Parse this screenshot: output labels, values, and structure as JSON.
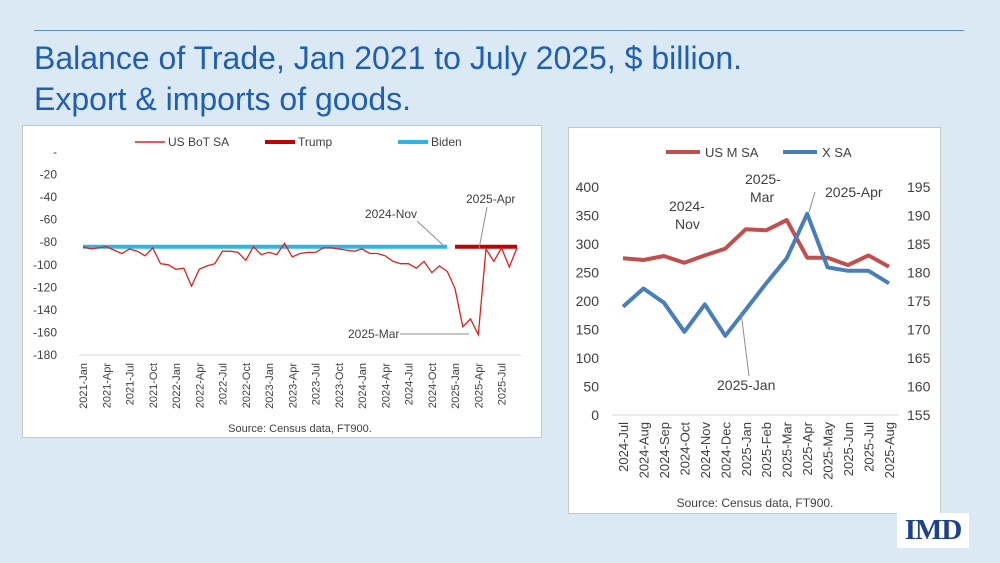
{
  "title_line1": "Balance of Trade, Jan 2021 to July 2025, $ billion.",
  "title_line2": "Export & imports of goods.",
  "logo": "IMD",
  "colors": {
    "bot": "#e0201c",
    "trump": "#c00000",
    "biden": "#2bb5e8",
    "imports": "#c0504d",
    "exports": "#4a7ebb"
  },
  "chart_data": [
    {
      "type": "line",
      "title": "",
      "source": "Source: Census data, FT900.",
      "legend": [
        "US BoT SA",
        "Trump",
        "Biden"
      ],
      "yticks": [
        "-",
        "-20",
        "-40",
        "-60",
        "-80",
        "-100",
        "-120",
        "-140",
        "-160",
        "-180"
      ],
      "ylim": [
        -180,
        0
      ],
      "xtick_labels": [
        "2021-Jan",
        "2021-Apr",
        "2021-Jul",
        "2021-Oct",
        "2022-Jan",
        "2022-Apr",
        "2022-Jul",
        "2022-Oct",
        "2023-Jan",
        "2023-Apr",
        "2023-Jul",
        "2023-Oct",
        "2024-Jan",
        "2024-Apr",
        "2024-Jul",
        "2024-Oct",
        "2025-Jan",
        "2025-Apr",
        "2025-Jul"
      ],
      "series": [
        {
          "name": "US BoT SA",
          "values": [
            -84,
            -86,
            -85,
            -84,
            -87,
            -90,
            -86,
            -88,
            -92,
            -85,
            -99,
            -100,
            -104,
            -103,
            -119,
            -104,
            -101,
            -99,
            -88,
            -88,
            -89,
            -96,
            -84,
            -91,
            -89,
            -91,
            -81,
            -93,
            -90,
            -89,
            -89,
            -85,
            -85,
            -86,
            -87,
            -88,
            -86,
            -90,
            -90,
            -92,
            -97,
            -99,
            -99,
            -103,
            -97,
            -107,
            -101,
            -106,
            -121,
            -155,
            -148,
            -162,
            -86,
            -97,
            -85,
            -102,
            -85
          ]
        },
        {
          "name": "Trump",
          "x_range": [
            48,
            56
          ],
          "value": -84
        },
        {
          "name": "Biden",
          "x_range": [
            0,
            47
          ],
          "value": -84
        }
      ],
      "annotations": [
        {
          "text": "2024-Nov",
          "at": 46
        },
        {
          "text": "2025-Apr",
          "at": 51
        },
        {
          "text": "2025-Mar",
          "at": 50
        }
      ]
    },
    {
      "type": "line",
      "title": "",
      "source": "Source: Census data, FT900.",
      "categories": [
        "2024-Jul",
        "2024-Aug",
        "2024-Sep",
        "2024-Oct",
        "2024-Nov",
        "2024-Dec",
        "2025-Jan",
        "2025-Feb",
        "2025-Mar",
        "2025-Apr",
        "2025-May",
        "2025-Jun",
        "2025-Jul",
        "2025-Aug"
      ],
      "yleft_ticks": [
        "400",
        "350",
        "300",
        "250",
        "200",
        "150",
        "100",
        "50",
        "0"
      ],
      "yright_ticks": [
        "195",
        "190",
        "185",
        "180",
        "175",
        "170",
        "165",
        "160",
        "155"
      ],
      "ylim_left": [
        0,
        400
      ],
      "ylim_right": [
        155,
        195
      ],
      "series": [
        {
          "name": "US M SA",
          "axis": "left",
          "values": [
            275,
            272,
            279,
            267,
            280,
            292,
            326,
            324,
            342,
            276,
            276,
            263,
            280,
            260
          ]
        },
        {
          "name": "X SA",
          "axis": "right",
          "values": [
            174.0,
            177.2,
            174.7,
            169.6,
            174.4,
            168.9,
            173.5,
            178.1,
            182.5,
            190.3,
            180.9,
            180.3,
            180.3,
            178.1
          ]
        }
      ],
      "annotations": [
        "2024-Nov",
        "2025-Mar",
        "2025-Apr",
        "2025-Jan"
      ]
    }
  ]
}
